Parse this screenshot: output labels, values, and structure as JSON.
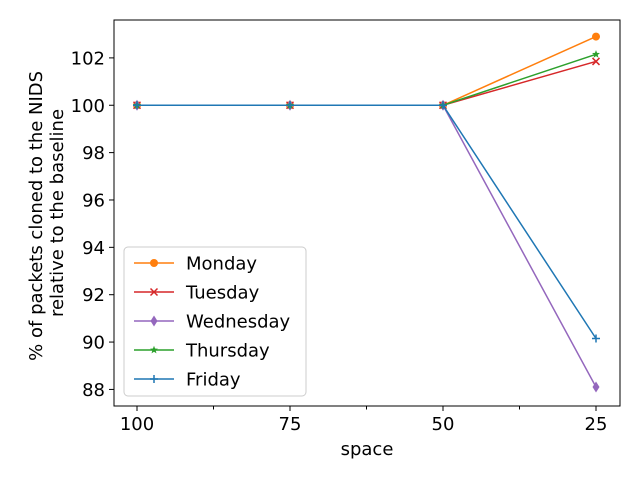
{
  "chart_data": {
    "type": "line",
    "xlabel": "space",
    "ylabel_lines": [
      "% of packets cloned to the NIDS",
      "relative to the baseline"
    ],
    "x": [
      "100",
      "75",
      "50",
      "25"
    ],
    "ylim": [
      87.3,
      103.6
    ],
    "yticks": [
      88,
      90,
      92,
      94,
      96,
      98,
      100,
      102
    ],
    "grid": false,
    "legend_position": "lower-left",
    "series": [
      {
        "name": "Monday",
        "color": "#ff7f0e",
        "marker": "circle",
        "values": [
          100,
          100,
          100,
          102.9
        ]
      },
      {
        "name": "Tuesday",
        "color": "#d62728",
        "marker": "x",
        "values": [
          100,
          100,
          100,
          101.85
        ]
      },
      {
        "name": "Wednesday",
        "color": "#9467bd",
        "marker": "thin-diamond",
        "values": [
          100,
          100,
          100,
          88.1
        ]
      },
      {
        "name": "Thursday",
        "color": "#2ca02c",
        "marker": "star",
        "values": [
          100,
          100,
          100,
          102.15
        ]
      },
      {
        "name": "Friday",
        "color": "#1f77b4",
        "marker": "plus",
        "values": [
          100,
          100,
          100,
          90.15
        ]
      }
    ]
  }
}
